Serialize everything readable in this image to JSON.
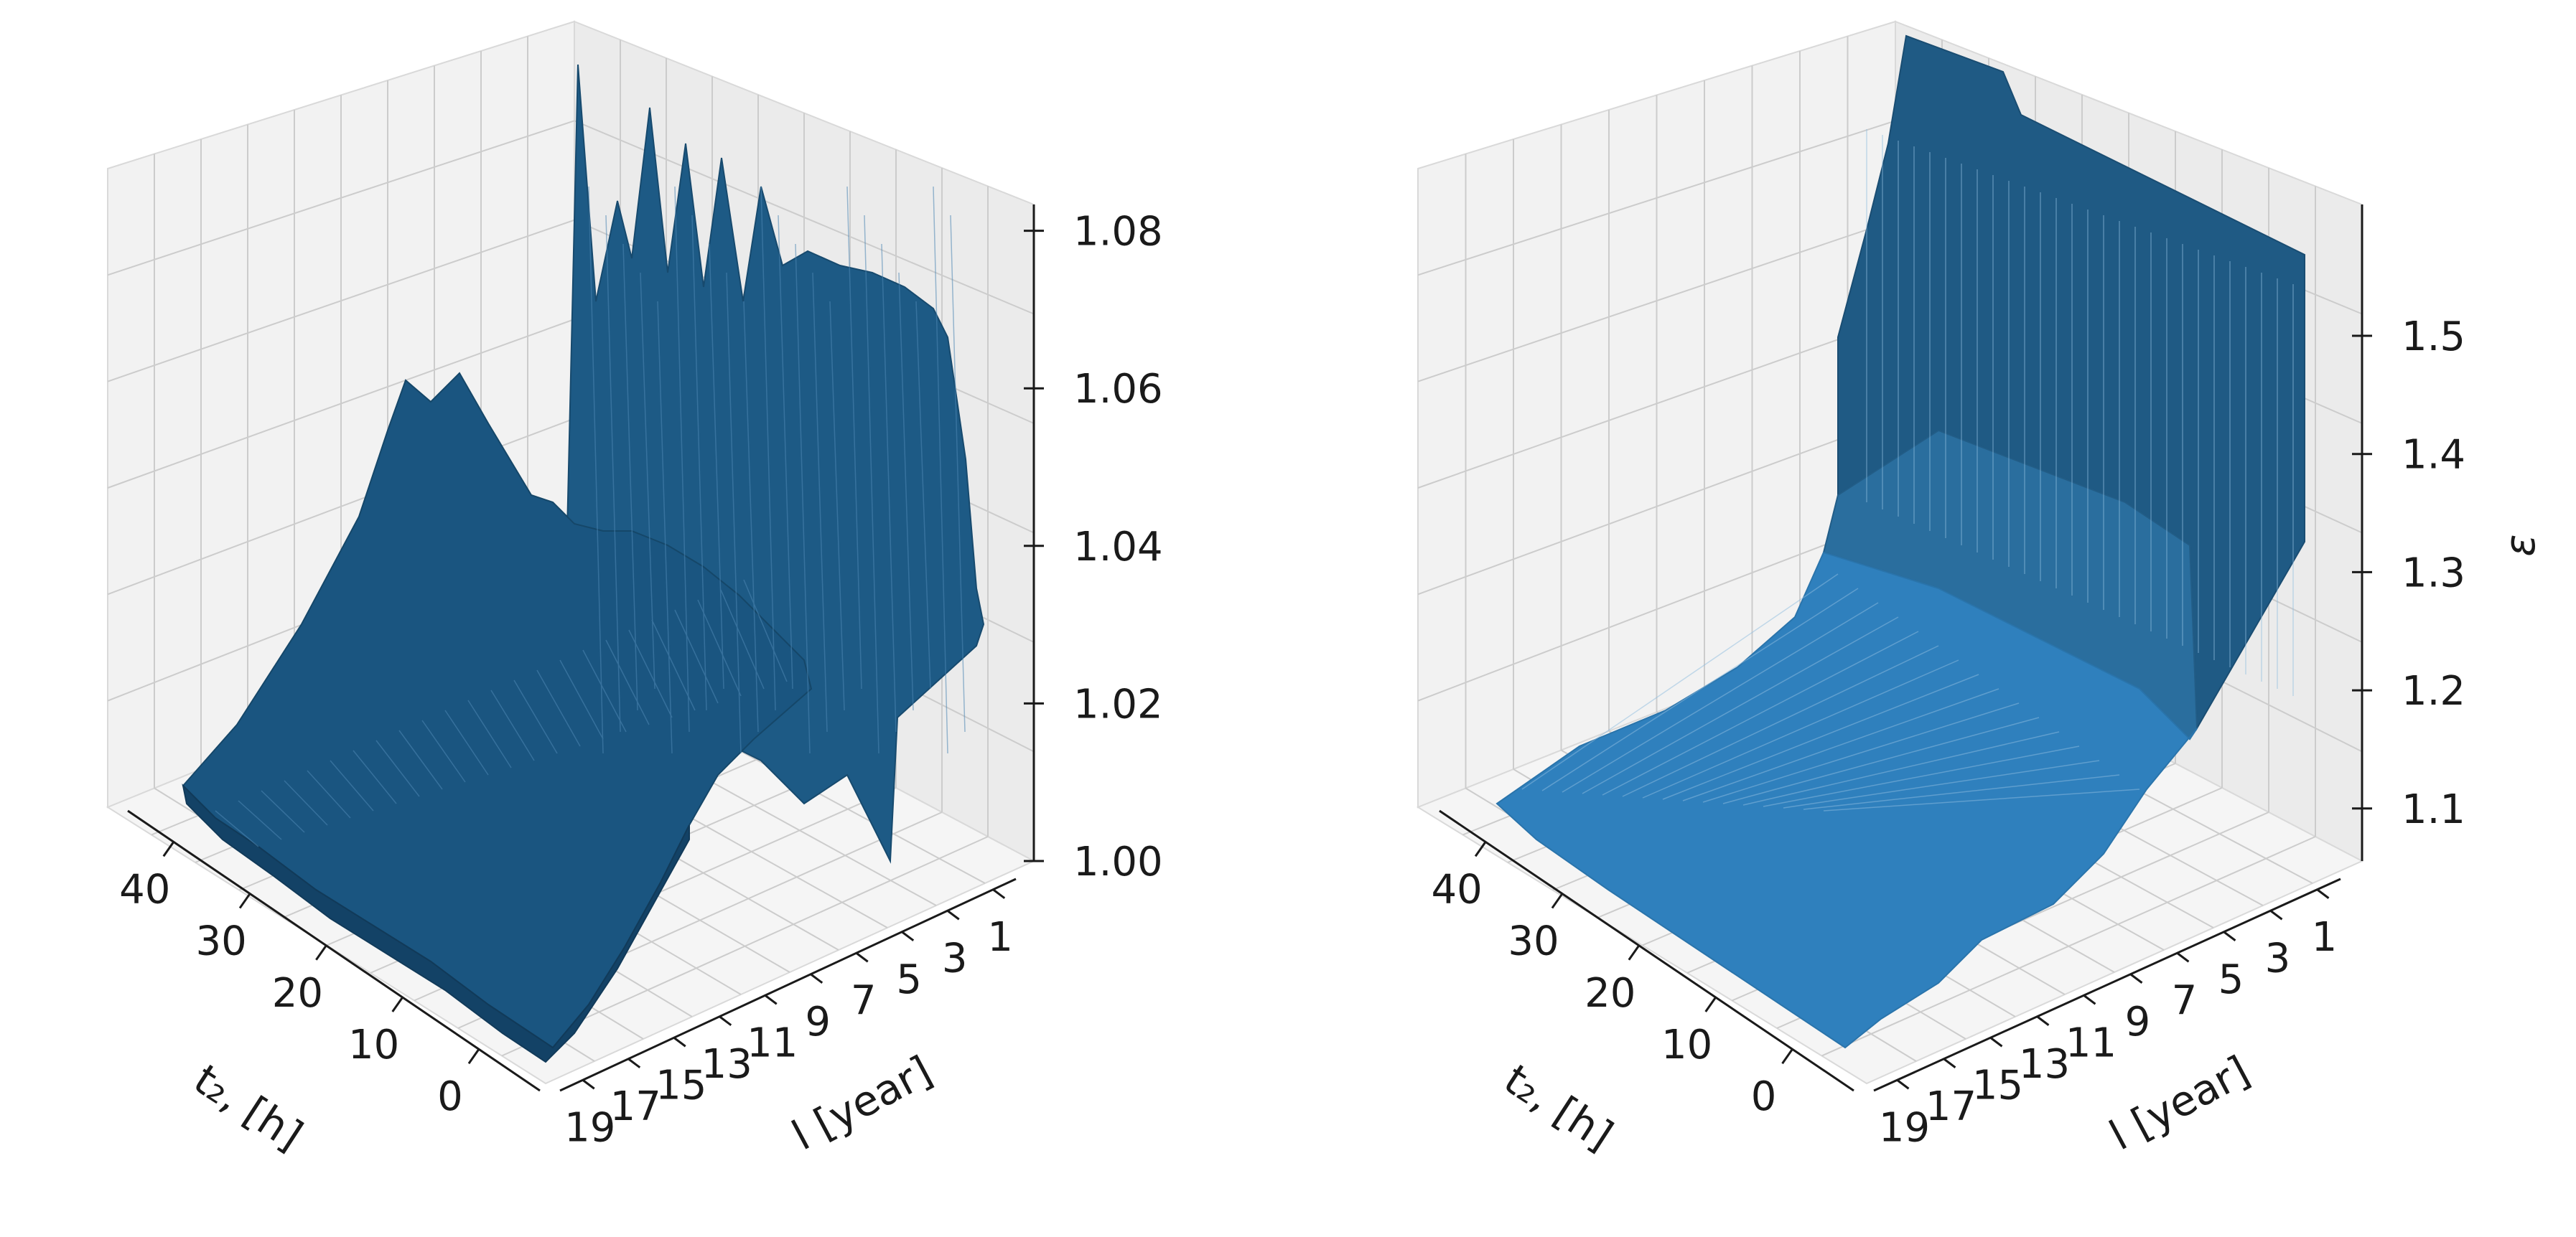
{
  "chart_data": [
    {
      "type": "surface3d",
      "title": "",
      "xlabel": "t₂, [h]",
      "ylabel": "l [year]",
      "zlabel": "",
      "x_ticks": [
        "40",
        "30",
        "20",
        "10",
        "0"
      ],
      "y_ticks": [
        "19",
        "17",
        "15",
        "13",
        "11",
        "9",
        "7",
        "5",
        "3",
        "1"
      ],
      "z_ticks": [
        "1.00",
        "1.02",
        "1.04",
        "1.06",
        "1.08"
      ],
      "xlim": [
        0,
        48
      ],
      "ylim": [
        1,
        20
      ],
      "zlim": [
        1.0,
        1.09
      ],
      "grid": true,
      "color": "#1f5f8f"
    },
    {
      "type": "surface3d",
      "title": "",
      "xlabel": "t₂, [h]",
      "ylabel": "l [year]",
      "zlabel": "ε",
      "x_ticks": [
        "40",
        "30",
        "20",
        "10",
        "0"
      ],
      "y_ticks": [
        "19",
        "17",
        "15",
        "13",
        "11",
        "9",
        "7",
        "5",
        "3",
        "1"
      ],
      "z_ticks": [
        "1.1",
        "1.2",
        "1.3",
        "1.4",
        "1.5"
      ],
      "xlim": [
        0,
        48
      ],
      "ylim": [
        1,
        20
      ],
      "zlim": [
        1.03,
        1.55
      ],
      "grid": true,
      "color": "#2a7ab5"
    }
  ]
}
